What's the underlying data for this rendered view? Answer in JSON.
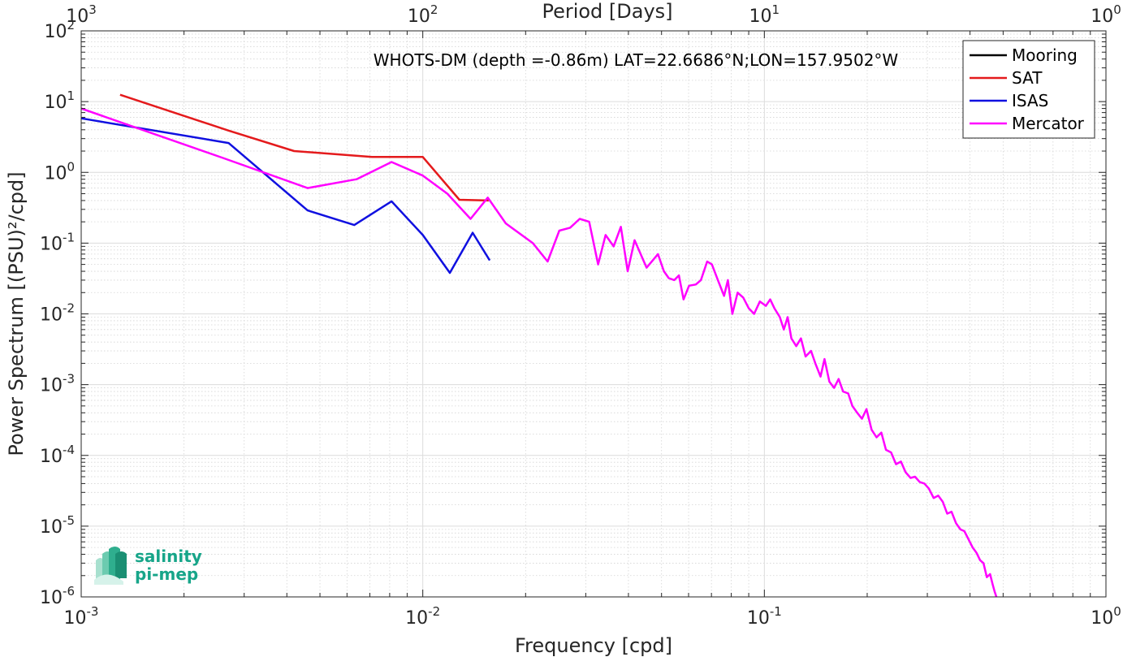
{
  "chart_data": {
    "type": "line",
    "title": "WHOTS-DM (depth =-0.86m) LAT=22.6686°N;LON=157.9502°W",
    "xlabel": "Frequency [cpd]",
    "ylabel": "Power Spectrum [(PSU)²/cpd]",
    "top_xlabel": "Period [Days]",
    "x_scale": "log",
    "y_scale": "log",
    "xlim": [
      0.001,
      1
    ],
    "ylim": [
      1e-06,
      100
    ],
    "grid": true,
    "legend_position": "top-right",
    "x_ticks": [
      {
        "value": 0.001,
        "base": "10",
        "exp": "-3"
      },
      {
        "value": 0.01,
        "base": "10",
        "exp": "-2"
      },
      {
        "value": 0.1,
        "base": "10",
        "exp": "-1"
      },
      {
        "value": 1,
        "base": "10",
        "exp": "0"
      }
    ],
    "top_ticks": [
      {
        "value": 0.001,
        "base": "10",
        "exp": "3"
      },
      {
        "value": 0.01,
        "base": "10",
        "exp": "2"
      },
      {
        "value": 0.1,
        "base": "10",
        "exp": "1"
      },
      {
        "value": 1,
        "base": "10",
        "exp": "0"
      }
    ],
    "y_ticks": [
      {
        "value": 100,
        "base": "10",
        "exp": "2"
      },
      {
        "value": 10,
        "base": "10",
        "exp": "1"
      },
      {
        "value": 1,
        "base": "10",
        "exp": "0"
      },
      {
        "value": 0.1,
        "base": "10",
        "exp": "-1"
      },
      {
        "value": 0.01,
        "base": "10",
        "exp": "-2"
      },
      {
        "value": 0.001,
        "base": "10",
        "exp": "-3"
      },
      {
        "value": 0.0001,
        "base": "10",
        "exp": "-4"
      },
      {
        "value": 1e-05,
        "base": "10",
        "exp": "-5"
      },
      {
        "value": 1e-06,
        "base": "10",
        "exp": "-6"
      }
    ],
    "series": [
      {
        "name": "Mooring",
        "color": "#000000",
        "x": [],
        "y": []
      },
      {
        "name": "SAT",
        "color": "#e41a1c",
        "x": [
          0.0013,
          0.0027,
          0.0042,
          0.0071,
          0.0085,
          0.01,
          0.0128,
          0.0156
        ],
        "y": [
          12.5,
          3.9,
          2.0,
          1.65,
          1.65,
          1.65,
          0.41,
          0.4
        ]
      },
      {
        "name": "ISAS",
        "color": "#1010e0",
        "x": [
          0.001,
          0.0027,
          0.0046,
          0.0063,
          0.0081,
          0.01,
          0.012,
          0.014,
          0.0157
        ],
        "y": [
          5.8,
          2.6,
          0.29,
          0.18,
          0.39,
          0.13,
          0.038,
          0.14,
          0.057
        ]
      },
      {
        "name": "Mercator",
        "color": "#ff00ff",
        "x": [
          0.001,
          0.0026,
          0.0046,
          0.0064,
          0.0081,
          0.01,
          0.0118,
          0.0138,
          0.0155,
          0.0175,
          0.021,
          0.0232,
          0.0251,
          0.027,
          0.0288,
          0.0307,
          0.0326,
          0.0343,
          0.0362,
          0.038,
          0.0398,
          0.0417,
          0.0452,
          0.0488,
          0.0508,
          0.0525,
          0.0545,
          0.0562,
          0.058,
          0.0602,
          0.063,
          0.0652,
          0.068,
          0.0702,
          0.0731,
          0.0762,
          0.0782,
          0.0806,
          0.0835,
          0.0867,
          0.09,
          0.0933,
          0.097,
          0.101,
          0.104,
          0.107,
          0.111,
          0.114,
          0.117,
          0.12,
          0.124,
          0.128,
          0.132,
          0.137,
          0.141,
          0.146,
          0.15,
          0.155,
          0.16,
          0.165,
          0.17,
          0.176,
          0.181,
          0.187,
          0.193,
          0.199,
          0.206,
          0.213,
          0.22,
          0.227,
          0.235,
          0.243,
          0.251,
          0.259,
          0.268,
          0.276,
          0.285,
          0.294,
          0.303,
          0.313,
          0.323,
          0.333,
          0.343,
          0.353,
          0.364,
          0.375,
          0.385,
          0.396,
          0.407,
          0.418,
          0.428,
          0.438,
          0.448,
          0.458,
          0.466,
          0.472,
          0.478
        ],
        "y": [
          8.0,
          1.6,
          0.6,
          0.8,
          1.4,
          0.9,
          0.5,
          0.22,
          0.44,
          0.19,
          0.1,
          0.055,
          0.15,
          0.165,
          0.22,
          0.2,
          0.05,
          0.13,
          0.09,
          0.17,
          0.04,
          0.11,
          0.045,
          0.07,
          0.04,
          0.032,
          0.03,
          0.035,
          0.016,
          0.025,
          0.026,
          0.03,
          0.055,
          0.05,
          0.03,
          0.018,
          0.03,
          0.01,
          0.02,
          0.017,
          0.012,
          0.01,
          0.015,
          0.013,
          0.016,
          0.012,
          0.009,
          0.006,
          0.009,
          0.0045,
          0.0035,
          0.0045,
          0.0025,
          0.003,
          0.002,
          0.0013,
          0.0023,
          0.0011,
          0.0009,
          0.0012,
          0.0008,
          0.00075,
          0.0005,
          0.0004,
          0.00033,
          0.00045,
          0.00023,
          0.00018,
          0.00021,
          0.00012,
          0.00011,
          7.5e-05,
          8.2e-05,
          5.8e-05,
          4.8e-05,
          5e-05,
          4.2e-05,
          4e-05,
          3.4e-05,
          2.5e-05,
          2.7e-05,
          2.2e-05,
          1.5e-05,
          1.6e-05,
          1.1e-05,
          9e-06,
          8.5e-06,
          6.5e-06,
          5e-06,
          4.2e-06,
          3.3e-06,
          3e-06,
          1.9e-06,
          2.1e-06,
          1.5e-06,
          1.2e-06,
          1e-06
        ]
      }
    ]
  },
  "logo": {
    "line1": "salinity",
    "line2": "pi-mep"
  }
}
